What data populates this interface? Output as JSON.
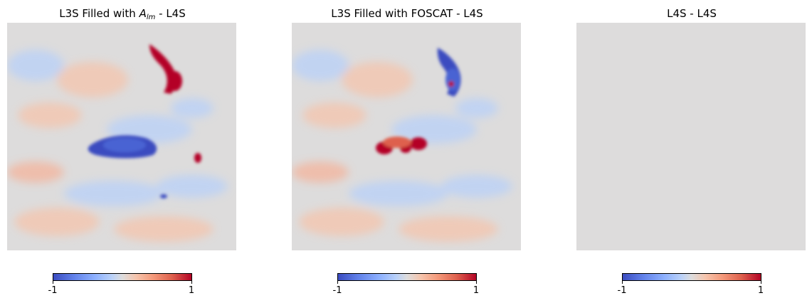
{
  "panels": [
    {
      "title_prefix": "L3S Filled with ",
      "title_symbol": "A",
      "title_subscript": "lm",
      "title_suffix": " - L4S",
      "colorbar": {
        "min_label": "-1",
        "max_label": "1"
      }
    },
    {
      "title": "L3S Filled with FOSCAT  - L4S",
      "colorbar": {
        "min_label": "-1",
        "max_label": "1"
      }
    },
    {
      "title": "L4S - L4S",
      "colorbar": {
        "min_label": "-1",
        "max_label": "1"
      }
    }
  ],
  "colors": {
    "zero_gray": "#dddcdc",
    "cmap_low": "#3b4cc0",
    "cmap_high": "#b40426"
  }
}
